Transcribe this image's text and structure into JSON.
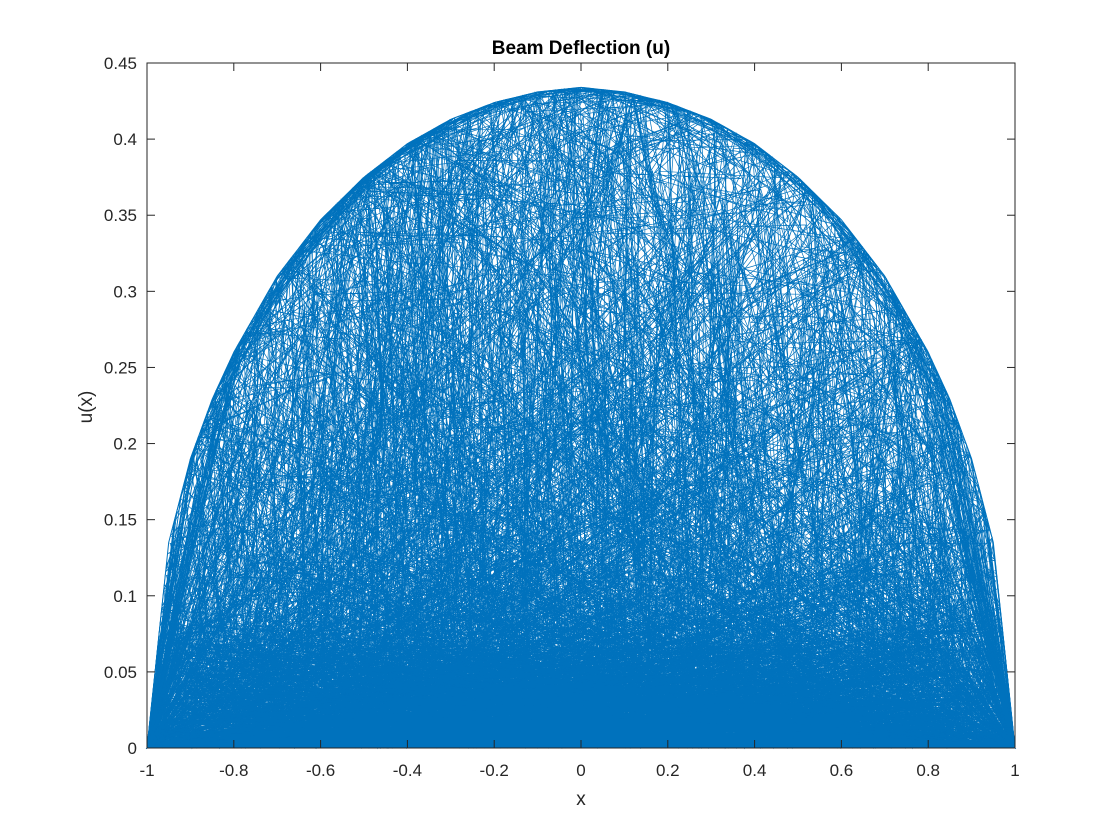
{
  "chart_data": {
    "type": "line",
    "title": "Beam Deflection (u)",
    "xlabel": "x",
    "ylabel": "u(x)",
    "xlim": [
      -1,
      1
    ],
    "ylim": [
      0,
      0.45
    ],
    "xticks": [
      "-1",
      "-0.8",
      "-0.6",
      "-0.4",
      "-0.2",
      "0",
      "0.2",
      "0.4",
      "0.6",
      "0.8",
      "1"
    ],
    "yticks": [
      "0",
      "0.05",
      "0.1",
      "0.15",
      "0.2",
      "0.25",
      "0.3",
      "0.35",
      "0.4",
      "0.45"
    ],
    "grid": false,
    "legend": "none",
    "series": [
      {
        "color": "#0072BD",
        "envelope": {
          "x": [
            -1,
            -0.95,
            -0.9,
            -0.85,
            -0.8,
            -0.7,
            -0.6,
            -0.5,
            -0.4,
            -0.3,
            -0.2,
            -0.1,
            0,
            0.1,
            0.2,
            0.3,
            0.4,
            0.5,
            0.6,
            0.7,
            0.8,
            0.85,
            0.9,
            0.95,
            1
          ],
          "y": [
            0,
            0.135,
            0.19,
            0.229,
            0.26,
            0.31,
            0.347,
            0.375,
            0.397,
            0.413,
            0.424,
            0.431,
            0.434,
            0.431,
            0.424,
            0.413,
            0.397,
            0.375,
            0.347,
            0.31,
            0.26,
            0.229,
            0.19,
            0.135,
            0
          ]
        }
      }
    ]
  }
}
